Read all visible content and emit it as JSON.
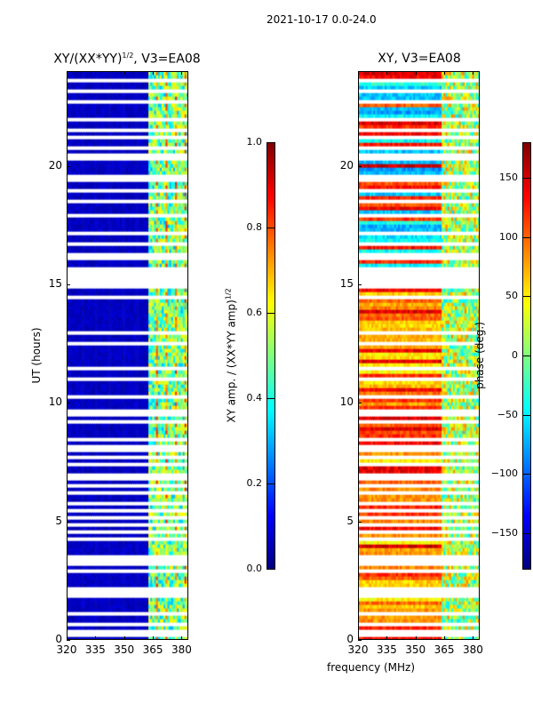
{
  "chart_data": [
    {
      "type": "heatmap",
      "title": "XY/(XX*YY)",
      "title_sup": "1/2",
      "title_suffix": ", V3=EA08",
      "xlabel": "",
      "ylabel": "UT (hours)",
      "xlim": [
        320,
        383.5
      ],
      "ylim": [
        0,
        24
      ],
      "xticks": [
        "320",
        "335",
        "350",
        "365",
        "380"
      ],
      "xtick_values": [
        320,
        335,
        350,
        365,
        380
      ],
      "yticks": [
        "0",
        "5",
        "10",
        "15",
        "20"
      ],
      "ytick_values": [
        0,
        5,
        10,
        15,
        20
      ],
      "colormap": "jet",
      "clim": [
        0,
        1
      ],
      "colorbar": {
        "label": "XY amp. / (XX*YY amp)",
        "label_sup": "1/2",
        "ticks": [
          "0.0",
          "0.2",
          "0.4",
          "0.6",
          "0.8",
          "1.0"
        ],
        "tick_values": [
          0,
          0.2,
          0.4,
          0.6,
          0.8,
          1.0
        ]
      },
      "typical_values": {
        "320-362 MHz": 0.05,
        "362-383 MHz": 0.45
      },
      "flagged_hours": [
        0.3,
        0.7,
        1.1,
        1.9,
        2.1,
        2.9,
        3.3,
        3.5,
        4.3,
        4.6,
        4.9,
        5.2,
        5.5,
        5.8,
        6.2,
        6.5,
        6.9,
        7.4,
        7.7,
        8.0,
        8.2,
        8.5,
        9.2,
        9.6,
        10.3,
        11.0,
        11.5,
        12.5,
        13.0,
        14.5,
        15.0,
        15.3,
        15.6,
        16.2,
        16.7,
        17.2,
        17.9,
        18.5,
        19.0,
        19.5,
        20.3,
        20.5,
        20.8,
        21.2,
        21.5,
        22.0,
        22.7,
        23.2,
        23.6
      ]
    },
    {
      "type": "heatmap",
      "title": "XY, V3=EA08",
      "xlabel": "frequency (MHz)",
      "ylabel": "",
      "xlim": [
        320,
        383.5
      ],
      "ylim": [
        0,
        24
      ],
      "xticks": [
        "320",
        "335",
        "350",
        "365",
        "380"
      ],
      "xtick_values": [
        320,
        335,
        350,
        365,
        380
      ],
      "yticks": [
        "0",
        "5",
        "10",
        "15",
        "20"
      ],
      "ytick_values": [
        0,
        5,
        10,
        15,
        20
      ],
      "colormap": "jet",
      "clim": [
        -180,
        180
      ],
      "colorbar": {
        "label": "phase (deg.)",
        "ticks": [
          "−150",
          "−100",
          "−50",
          "0",
          "50",
          "100",
          "150"
        ],
        "tick_values": [
          -150,
          -100,
          -50,
          0,
          50,
          100,
          150
        ]
      },
      "typical_values": {
        "320-362 MHz": 120,
        "362-383 MHz": -60
      }
    }
  ],
  "suptitle": "2021-10-17 0.0-24.0"
}
